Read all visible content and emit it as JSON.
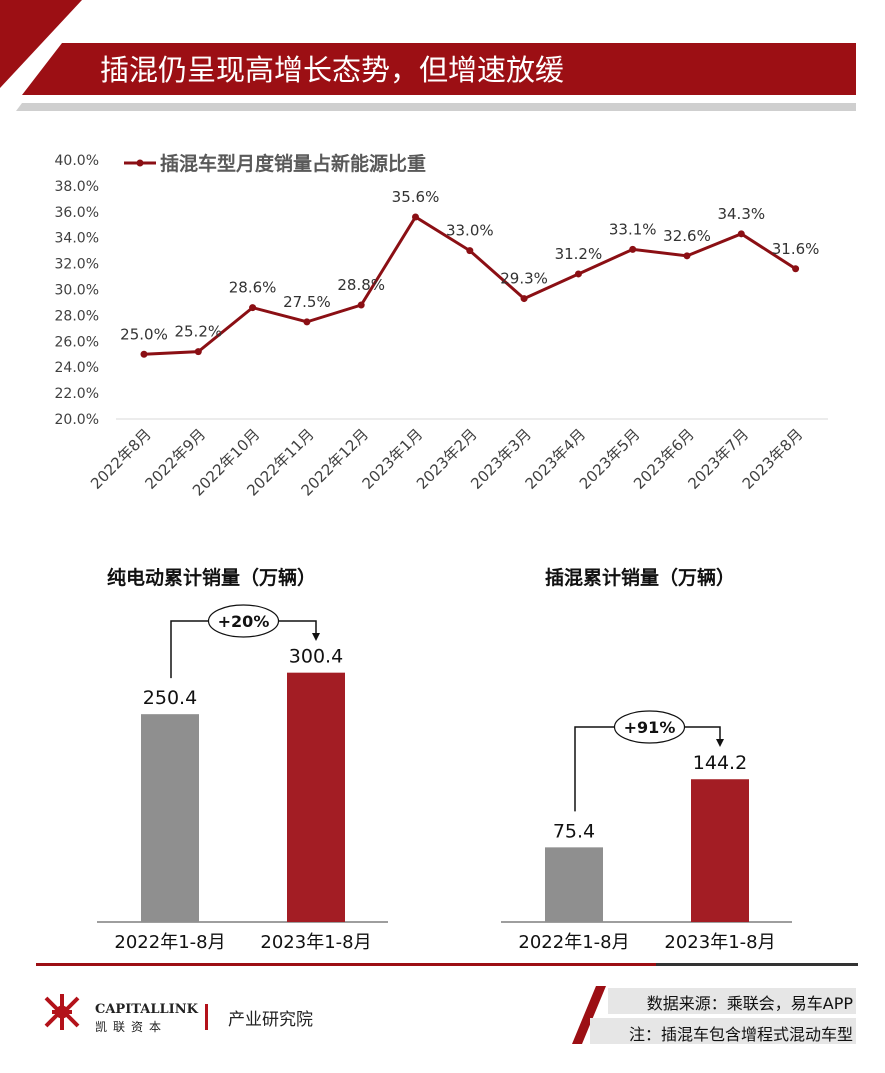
{
  "header": {
    "title": "插混仍呈现高增长态势，但增速放缓"
  },
  "colors": {
    "accent": "#9c0f14",
    "bar_dark_red": "#a31d24",
    "bar_gray": "#8f8f8f",
    "line": "#8b0f14"
  },
  "chart_data": [
    {
      "type": "line",
      "legend": "插混车型月度销量占新能源比重",
      "categories": [
        "2022年8月",
        "2022年9月",
        "2022年10月",
        "2022年11月",
        "2022年12月",
        "2023年1月",
        "2023年2月",
        "2023年3月",
        "2023年4月",
        "2023年5月",
        "2023年6月",
        "2023年7月",
        "2023年8月"
      ],
      "values": [
        25.0,
        25.2,
        28.6,
        27.5,
        28.8,
        35.6,
        33.0,
        29.3,
        31.2,
        33.1,
        32.6,
        34.3,
        31.6
      ],
      "data_labels": [
        "25.0%",
        "25.2%",
        "28.6%",
        "27.5%",
        "28.8%",
        "35.6%",
        "33.0%",
        "29.3%",
        "31.2%",
        "33.1%",
        "32.6%",
        "34.3%",
        "31.6%"
      ],
      "ylim": [
        20,
        40
      ],
      "yticks": [
        "20.0%",
        "22.0%",
        "24.0%",
        "26.0%",
        "28.0%",
        "30.0%",
        "32.0%",
        "34.0%",
        "36.0%",
        "38.0%",
        "40.0%"
      ]
    },
    {
      "type": "bar",
      "title": "纯电动累计销量（万辆）",
      "categories": [
        "2022年1-8月",
        "2023年1-8月"
      ],
      "values": [
        250.4,
        300.4
      ],
      "labels": [
        "250.4",
        "300.4"
      ],
      "growth": "+20%"
    },
    {
      "type": "bar",
      "title": "插混累计销量（万辆）",
      "categories": [
        "2022年1-8月",
        "2023年1-8月"
      ],
      "values": [
        75.4,
        144.2
      ],
      "labels": [
        "75.4",
        "144.2"
      ],
      "growth": "+91%"
    }
  ],
  "footer": {
    "brand": "CAPITALLINK",
    "brand_cn": "凯联资本",
    "dept": "产业研究院",
    "source": "数据来源：乘联会，易车APP",
    "note": "注：插混车包含增程式混动车型"
  }
}
